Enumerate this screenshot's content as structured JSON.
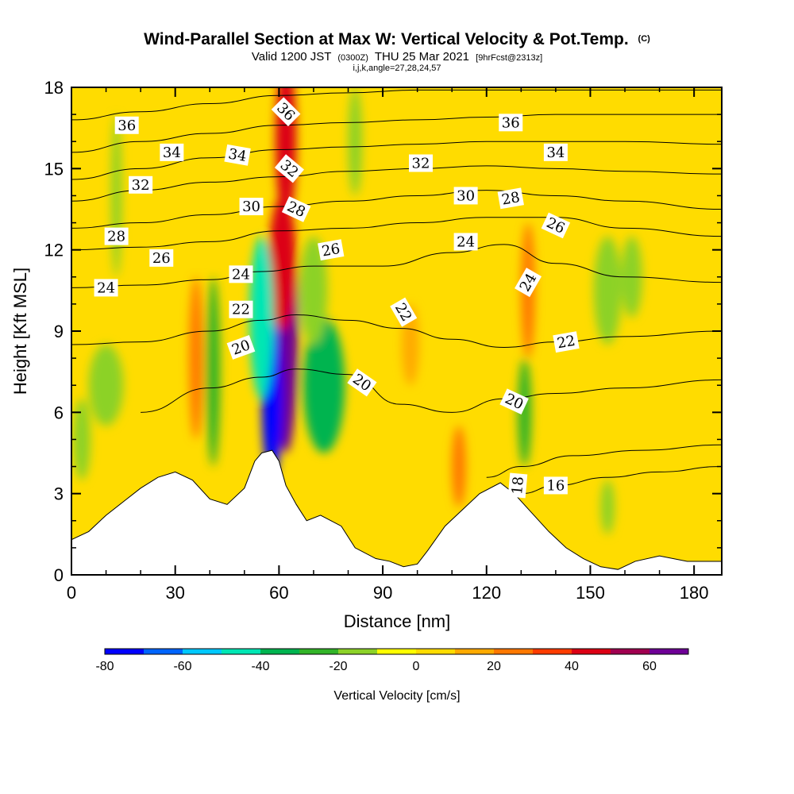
{
  "chart_data": {
    "type": "heatmap",
    "title": "Wind-Parallel Section at Max W: Vertical Velocity & Pot.Temp.",
    "title_mark": "(C)",
    "subtitle_main": "Valid 1200 JST",
    "subtitle_utc": "(0300Z)",
    "subtitle_date": "THU 25 Mar 2021",
    "subtitle_fcst": "[9hrFcst@2313z]",
    "subtitle_params": "i,j,k,angle=27,28,24,57",
    "xlabel": "Distance [nm]",
    "ylabel": "Height [Kft MSL]",
    "xlim": [
      0,
      188
    ],
    "ylim": [
      0,
      18
    ],
    "x_ticks": [
      "0",
      "30",
      "60",
      "90",
      "120",
      "150",
      "180"
    ],
    "y_ticks": [
      "0",
      "3",
      "6",
      "9",
      "12",
      "15",
      "18"
    ],
    "grid": false,
    "colorbar": {
      "label": "Vertical Velocity [cm/s]",
      "bounds": [
        -80,
        -70,
        -60,
        -50,
        -40,
        -30,
        -20,
        -10,
        0,
        10,
        20,
        30,
        40,
        50,
        60,
        70
      ],
      "tick_labels": [
        "-80",
        "-60",
        "-40",
        "-20",
        "0",
        "20",
        "40",
        "60"
      ],
      "colors": [
        "#0000ff",
        "#0064ff",
        "#00c8ff",
        "#00e6b4",
        "#00b450",
        "#32b428",
        "#8cd228",
        "#ffff00",
        "#ffdc00",
        "#ffaa00",
        "#ff7800",
        "#ff3c00",
        "#dc0014",
        "#a00050",
        "#6e0096"
      ]
    },
    "terrain": [
      [
        0,
        1.3
      ],
      [
        5,
        1.6
      ],
      [
        10,
        2.2
      ],
      [
        15,
        2.7
      ],
      [
        20,
        3.2
      ],
      [
        25,
        3.6
      ],
      [
        30,
        3.8
      ],
      [
        35,
        3.5
      ],
      [
        40,
        2.8
      ],
      [
        45,
        2.6
      ],
      [
        50,
        3.2
      ],
      [
        53,
        4.2
      ],
      [
        55,
        4.5
      ],
      [
        58,
        4.6
      ],
      [
        60,
        4.2
      ],
      [
        62,
        3.3
      ],
      [
        65,
        2.6
      ],
      [
        68,
        2.0
      ],
      [
        72,
        2.2
      ],
      [
        78,
        1.8
      ],
      [
        82,
        1.0
      ],
      [
        88,
        0.6
      ],
      [
        92,
        0.5
      ],
      [
        96,
        0.3
      ],
      [
        100,
        0.4
      ],
      [
        103,
        0.9
      ],
      [
        108,
        1.8
      ],
      [
        113,
        2.4
      ],
      [
        118,
        3.0
      ],
      [
        124,
        3.4
      ],
      [
        128,
        3.0
      ],
      [
        133,
        2.3
      ],
      [
        138,
        1.6
      ],
      [
        143,
        1.0
      ],
      [
        148,
        0.6
      ],
      [
        153,
        0.3
      ],
      [
        158,
        0.2
      ],
      [
        163,
        0.5
      ],
      [
        170,
        0.7
      ],
      [
        178,
        0.5
      ],
      [
        188,
        0.5
      ]
    ],
    "velocity_features": [
      {
        "x": 62,
        "y": 9.0,
        "rx": 3.5,
        "ry": 4.5,
        "value": 65
      },
      {
        "x": 61,
        "y": 11.5,
        "rx": 4.0,
        "ry": 2.5,
        "value": 45
      },
      {
        "x": 62,
        "y": 16.0,
        "rx": 3.0,
        "ry": 3.0,
        "value": 40
      },
      {
        "x": 58,
        "y": 6.5,
        "rx": 3.0,
        "ry": 3.0,
        "value": -75
      },
      {
        "x": 55,
        "y": 9.5,
        "rx": 3.5,
        "ry": 3.0,
        "value": -45
      },
      {
        "x": 73,
        "y": 7.0,
        "rx": 6.0,
        "ry": 2.5,
        "value": -35
      },
      {
        "x": 70,
        "y": 10.5,
        "rx": 4.0,
        "ry": 2.0,
        "value": -20
      },
      {
        "x": 41,
        "y": 7.5,
        "rx": 2.0,
        "ry": 3.5,
        "value": -25
      },
      {
        "x": 36,
        "y": 8.0,
        "rx": 2.0,
        "ry": 3.0,
        "value": 25
      },
      {
        "x": 13,
        "y": 14.0,
        "rx": 1.5,
        "ry": 3.0,
        "value": -15
      },
      {
        "x": 10,
        "y": 7.0,
        "rx": 5.0,
        "ry": 1.5,
        "value": -15
      },
      {
        "x": 3,
        "y": 5.0,
        "rx": 2.5,
        "ry": 1.5,
        "value": -15
      },
      {
        "x": 82,
        "y": 16.0,
        "rx": 2.0,
        "ry": 2.0,
        "value": -15
      },
      {
        "x": 98,
        "y": 8.5,
        "rx": 2.5,
        "ry": 1.5,
        "value": 15
      },
      {
        "x": 112,
        "y": 4.0,
        "rx": 2.0,
        "ry": 1.5,
        "value": 25
      },
      {
        "x": 131,
        "y": 6.0,
        "rx": 2.0,
        "ry": 2.0,
        "value": -30
      },
      {
        "x": 132,
        "y": 10.5,
        "rx": 2.0,
        "ry": 2.5,
        "value": 25
      },
      {
        "x": 155,
        "y": 10.5,
        "rx": 4.0,
        "ry": 2.0,
        "value": -20
      },
      {
        "x": 162,
        "y": 11.0,
        "rx": 3.0,
        "ry": 1.5,
        "value": -15
      },
      {
        "x": 155,
        "y": 2.5,
        "rx": 2.0,
        "ry": 1.0,
        "value": -15
      }
    ],
    "theta_contours": [
      {
        "value": 16,
        "points": [
          [
            130,
            3.0
          ],
          [
            140,
            3.3
          ],
          [
            155,
            3.6
          ],
          [
            170,
            3.8
          ],
          [
            188,
            4.0
          ]
        ]
      },
      {
        "value": 18,
        "points": [
          [
            120,
            3.6
          ],
          [
            130,
            4.0
          ],
          [
            145,
            4.4
          ],
          [
            165,
            4.6
          ],
          [
            188,
            4.8
          ]
        ]
      },
      {
        "value": 20,
        "points": [
          [
            20,
            6.0
          ],
          [
            40,
            6.9
          ],
          [
            55,
            7.3
          ],
          [
            65,
            7.6
          ],
          [
            80,
            7.4
          ],
          [
            95,
            6.3
          ],
          [
            110,
            6.0
          ],
          [
            125,
            6.5
          ],
          [
            140,
            6.7
          ],
          [
            160,
            6.9
          ],
          [
            188,
            7.2
          ]
        ]
      },
      {
        "value": 22,
        "points": [
          [
            0,
            8.5
          ],
          [
            20,
            8.6
          ],
          [
            40,
            9.0
          ],
          [
            55,
            9.4
          ],
          [
            65,
            9.6
          ],
          [
            80,
            9.4
          ],
          [
            95,
            9.1
          ],
          [
            110,
            8.7
          ],
          [
            125,
            8.4
          ],
          [
            140,
            8.6
          ],
          [
            160,
            8.8
          ],
          [
            188,
            9.0
          ]
        ]
      },
      {
        "value": 24,
        "points": [
          [
            0,
            10.6
          ],
          [
            20,
            10.7
          ],
          [
            40,
            10.9
          ],
          [
            55,
            11.2
          ],
          [
            70,
            11.4
          ],
          [
            90,
            11.4
          ],
          [
            110,
            11.9
          ],
          [
            125,
            12.2
          ],
          [
            140,
            11.5
          ],
          [
            160,
            11.0
          ],
          [
            188,
            10.8
          ]
        ]
      },
      {
        "value": 26,
        "points": [
          [
            0,
            12.0
          ],
          [
            20,
            12.1
          ],
          [
            40,
            12.3
          ],
          [
            60,
            12.7
          ],
          [
            80,
            12.8
          ],
          [
            100,
            13.0
          ],
          [
            120,
            13.2
          ],
          [
            140,
            13.2
          ],
          [
            160,
            12.8
          ],
          [
            188,
            12.5
          ]
        ]
      },
      {
        "value": 28,
        "points": [
          [
            0,
            12.8
          ],
          [
            20,
            13.0
          ],
          [
            40,
            13.3
          ],
          [
            60,
            13.6
          ],
          [
            80,
            13.8
          ],
          [
            100,
            14.0
          ],
          [
            120,
            14.2
          ],
          [
            140,
            14.0
          ],
          [
            160,
            13.8
          ],
          [
            188,
            13.5
          ]
        ]
      },
      {
        "value": 30,
        "points": [
          [
            0,
            13.8
          ],
          [
            20,
            14.2
          ],
          [
            40,
            14.5
          ],
          [
            60,
            14.7
          ],
          [
            80,
            14.9
          ],
          [
            100,
            15.0
          ],
          [
            120,
            15.1
          ],
          [
            140,
            15.0
          ],
          [
            160,
            14.9
          ],
          [
            188,
            14.8
          ]
        ]
      },
      {
        "value": 32,
        "points": [
          [
            0,
            14.6
          ],
          [
            20,
            15.0
          ],
          [
            40,
            15.4
          ],
          [
            60,
            15.7
          ],
          [
            80,
            15.8
          ],
          [
            100,
            15.9
          ],
          [
            120,
            16.0
          ],
          [
            140,
            16.0
          ],
          [
            160,
            16.0
          ],
          [
            188,
            15.9
          ]
        ]
      },
      {
        "value": 34,
        "points": [
          [
            0,
            15.6
          ],
          [
            20,
            16.0
          ],
          [
            40,
            16.3
          ],
          [
            60,
            16.6
          ],
          [
            80,
            16.7
          ],
          [
            100,
            16.8
          ],
          [
            120,
            16.9
          ],
          [
            140,
            17.0
          ],
          [
            160,
            17.0
          ],
          [
            188,
            17.0
          ]
        ]
      },
      {
        "value": 36,
        "points": [
          [
            0,
            16.8
          ],
          [
            20,
            17.1
          ],
          [
            40,
            17.4
          ],
          [
            60,
            17.7
          ],
          [
            80,
            17.8
          ],
          [
            100,
            17.9
          ],
          [
            120,
            17.9
          ],
          [
            140,
            17.9
          ],
          [
            160,
            17.9
          ],
          [
            188,
            17.9
          ]
        ]
      }
    ],
    "contour_labels": [
      {
        "text": "36",
        "x": 16,
        "y": 16.6,
        "angle": 0
      },
      {
        "text": "34",
        "x": 29,
        "y": 15.6,
        "angle": 0
      },
      {
        "text": "32",
        "x": 20,
        "y": 14.4,
        "angle": 0
      },
      {
        "text": "28",
        "x": 13,
        "y": 12.5,
        "angle": 0
      },
      {
        "text": "26",
        "x": 26,
        "y": 11.7,
        "angle": 0
      },
      {
        "text": "24",
        "x": 10,
        "y": 10.6,
        "angle": 0
      },
      {
        "text": "34",
        "x": 48,
        "y": 15.5,
        "angle": 10
      },
      {
        "text": "30",
        "x": 52,
        "y": 13.6,
        "angle": 0
      },
      {
        "text": "24",
        "x": 49,
        "y": 11.1,
        "angle": 0
      },
      {
        "text": "22",
        "x": 49,
        "y": 9.8,
        "angle": 0
      },
      {
        "text": "20",
        "x": 49,
        "y": 8.4,
        "angle": -20
      },
      {
        "text": "36",
        "x": 62,
        "y": 17.1,
        "angle": 45
      },
      {
        "text": "32",
        "x": 63,
        "y": 15.0,
        "angle": 40
      },
      {
        "text": "28",
        "x": 65,
        "y": 13.5,
        "angle": 25
      },
      {
        "text": "26",
        "x": 75,
        "y": 12.0,
        "angle": -10
      },
      {
        "text": "22",
        "x": 96,
        "y": 9.7,
        "angle": 60
      },
      {
        "text": "20",
        "x": 84,
        "y": 7.1,
        "angle": 35
      },
      {
        "text": "32",
        "x": 101,
        "y": 15.2,
        "angle": 0
      },
      {
        "text": "30",
        "x": 114,
        "y": 14.0,
        "angle": 0
      },
      {
        "text": "24",
        "x": 114,
        "y": 12.3,
        "angle": 0
      },
      {
        "text": "36",
        "x": 127,
        "y": 16.7,
        "angle": 0
      },
      {
        "text": "28",
        "x": 127,
        "y": 13.9,
        "angle": -10
      },
      {
        "text": "34",
        "x": 140,
        "y": 15.6,
        "angle": 0
      },
      {
        "text": "26",
        "x": 140,
        "y": 12.9,
        "angle": 25
      },
      {
        "text": "24",
        "x": 132,
        "y": 10.8,
        "angle": -60
      },
      {
        "text": "22",
        "x": 143,
        "y": 8.6,
        "angle": -10
      },
      {
        "text": "20",
        "x": 128,
        "y": 6.4,
        "angle": 25
      },
      {
        "text": "18",
        "x": 129,
        "y": 3.3,
        "angle": -85
      },
      {
        "text": "16",
        "x": 140,
        "y": 3.3,
        "angle": 0
      }
    ]
  }
}
